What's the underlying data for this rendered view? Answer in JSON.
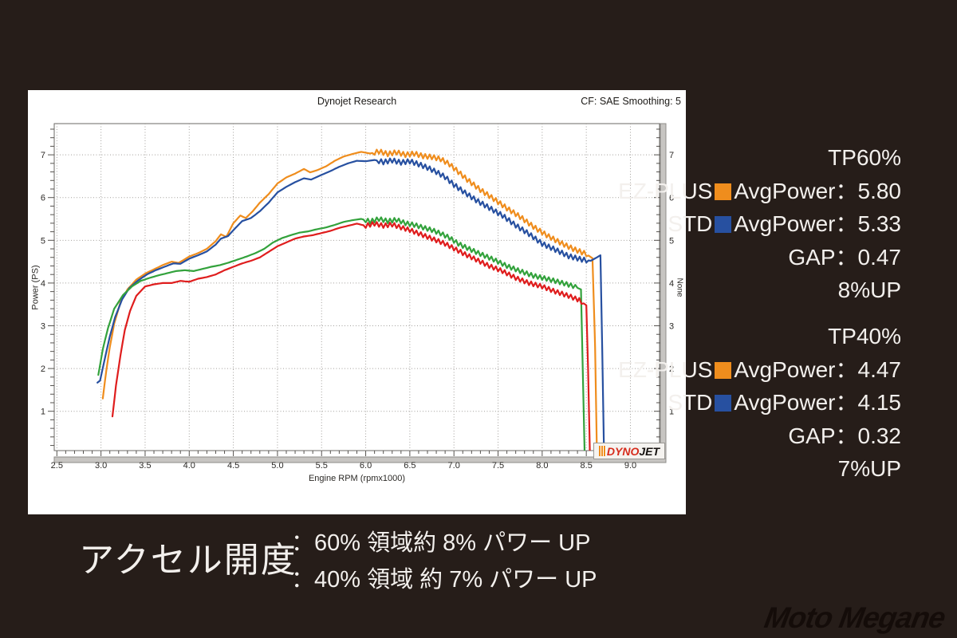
{
  "colors": {
    "background": "#261d19",
    "panel": "#ffffff",
    "text_light": "#f3f0ed",
    "orange": "#ef8d1d",
    "blue": "#2750a0",
    "green": "#33a23c",
    "red": "#df1d1d",
    "grid": "#a29f9b",
    "band": "#c7c5c2",
    "band_edge": "#8f8d8a",
    "border": "#6b6966"
  },
  "chart": {
    "title": "Dynojet Research",
    "cf_note": "CF: SAE Smoothing: 5",
    "x_axis_label": "Engine RPM (rpmx1000)",
    "y_axis_label": "Power (PS)",
    "right_axis_label": "None"
  },
  "chart_data": {
    "type": "line",
    "xlabel": "Engine RPM (rpmx1000)",
    "ylabel": "Power (PS)",
    "xlim": [
      2.47,
      9.33
    ],
    "ylim": [
      0.08,
      7.73
    ],
    "x_ticks": [
      2.5,
      3.0,
      3.5,
      4.0,
      4.5,
      5.0,
      5.5,
      6.0,
      6.5,
      7.0,
      7.5,
      8.0,
      8.5,
      9.0
    ],
    "x_tick_labels": [
      "2.5",
      "3.0",
      "3.5",
      "4.0",
      "4.5",
      "5.0",
      "5.5",
      "6.0",
      "6.5",
      "7.0",
      "7.5",
      "8.0",
      "8.5",
      "9.0"
    ],
    "y_ticks": [
      1,
      2,
      3,
      4,
      5,
      6,
      7
    ],
    "x_minor_step": 0.1,
    "y_minor_step": 0.2,
    "grid": "dotted",
    "series": [
      {
        "name": "TP60% EZ-PLUS",
        "color": "#ef8d1d",
        "wiggle": {
          "from": 6.1,
          "to": 8.5,
          "amp": 0.055
        },
        "points": [
          [
            3.02,
            1.3
          ],
          [
            3.06,
            1.95
          ],
          [
            3.1,
            2.5
          ],
          [
            3.15,
            3.05
          ],
          [
            3.22,
            3.55
          ],
          [
            3.3,
            3.85
          ],
          [
            3.4,
            4.08
          ],
          [
            3.5,
            4.22
          ],
          [
            3.6,
            4.32
          ],
          [
            3.7,
            4.42
          ],
          [
            3.8,
            4.5
          ],
          [
            3.88,
            4.47
          ],
          [
            4.0,
            4.62
          ],
          [
            4.1,
            4.7
          ],
          [
            4.2,
            4.8
          ],
          [
            4.3,
            4.98
          ],
          [
            4.36,
            5.14
          ],
          [
            4.42,
            5.08
          ],
          [
            4.5,
            5.4
          ],
          [
            4.58,
            5.58
          ],
          [
            4.64,
            5.52
          ],
          [
            4.72,
            5.68
          ],
          [
            4.8,
            5.88
          ],
          [
            4.9,
            6.08
          ],
          [
            5.0,
            6.33
          ],
          [
            5.1,
            6.47
          ],
          [
            5.2,
            6.56
          ],
          [
            5.3,
            6.67
          ],
          [
            5.37,
            6.59
          ],
          [
            5.45,
            6.64
          ],
          [
            5.55,
            6.73
          ],
          [
            5.65,
            6.86
          ],
          [
            5.75,
            6.96
          ],
          [
            5.85,
            7.02
          ],
          [
            5.95,
            7.07
          ],
          [
            6.05,
            7.03
          ],
          [
            6.15,
            7.08
          ],
          [
            6.25,
            7.02
          ],
          [
            6.35,
            7.06
          ],
          [
            6.45,
            7.0
          ],
          [
            6.55,
            7.03
          ],
          [
            6.65,
            6.97
          ],
          [
            6.75,
            6.95
          ],
          [
            6.85,
            6.9
          ],
          [
            6.95,
            6.78
          ],
          [
            7.05,
            6.6
          ],
          [
            7.15,
            6.42
          ],
          [
            7.3,
            6.18
          ],
          [
            7.45,
            5.97
          ],
          [
            7.6,
            5.75
          ],
          [
            7.75,
            5.55
          ],
          [
            7.9,
            5.32
          ],
          [
            8.05,
            5.12
          ],
          [
            8.2,
            4.95
          ],
          [
            8.35,
            4.8
          ],
          [
            8.5,
            4.68
          ],
          [
            8.57,
            4.58
          ],
          [
            8.6,
            2.5
          ],
          [
            8.62,
            0.1
          ]
        ]
      },
      {
        "name": "TP60% STD",
        "color": "#2750a0",
        "wiggle": {
          "from": 6.15,
          "to": 8.5,
          "amp": 0.055
        },
        "points": [
          [
            2.96,
            1.67
          ],
          [
            2.99,
            1.72
          ],
          [
            3.04,
            2.2
          ],
          [
            3.1,
            2.75
          ],
          [
            3.16,
            3.2
          ],
          [
            3.24,
            3.62
          ],
          [
            3.32,
            3.88
          ],
          [
            3.42,
            4.06
          ],
          [
            3.52,
            4.2
          ],
          [
            3.62,
            4.3
          ],
          [
            3.72,
            4.38
          ],
          [
            3.82,
            4.46
          ],
          [
            3.9,
            4.45
          ],
          [
            4.0,
            4.57
          ],
          [
            4.1,
            4.65
          ],
          [
            4.2,
            4.74
          ],
          [
            4.3,
            4.9
          ],
          [
            4.36,
            5.04
          ],
          [
            4.44,
            5.1
          ],
          [
            4.52,
            5.28
          ],
          [
            4.6,
            5.45
          ],
          [
            4.7,
            5.52
          ],
          [
            4.8,
            5.68
          ],
          [
            4.9,
            5.88
          ],
          [
            5.0,
            6.12
          ],
          [
            5.1,
            6.25
          ],
          [
            5.2,
            6.36
          ],
          [
            5.3,
            6.45
          ],
          [
            5.38,
            6.42
          ],
          [
            5.5,
            6.53
          ],
          [
            5.6,
            6.62
          ],
          [
            5.7,
            6.72
          ],
          [
            5.8,
            6.8
          ],
          [
            5.9,
            6.86
          ],
          [
            6.0,
            6.85
          ],
          [
            6.1,
            6.88
          ],
          [
            6.2,
            6.83
          ],
          [
            6.3,
            6.87
          ],
          [
            6.4,
            6.82
          ],
          [
            6.5,
            6.85
          ],
          [
            6.6,
            6.78
          ],
          [
            6.7,
            6.7
          ],
          [
            6.8,
            6.6
          ],
          [
            6.9,
            6.48
          ],
          [
            7.0,
            6.3
          ],
          [
            7.1,
            6.15
          ],
          [
            7.25,
            5.94
          ],
          [
            7.4,
            5.76
          ],
          [
            7.55,
            5.58
          ],
          [
            7.7,
            5.35
          ],
          [
            7.85,
            5.15
          ],
          [
            8.0,
            4.92
          ],
          [
            8.15,
            4.78
          ],
          [
            8.3,
            4.63
          ],
          [
            8.45,
            4.55
          ],
          [
            8.55,
            4.52
          ],
          [
            8.62,
            4.6
          ],
          [
            8.66,
            4.65
          ],
          [
            8.68,
            2.5
          ],
          [
            8.7,
            0.1
          ]
        ]
      },
      {
        "name": "TP40% EZ-PLUS",
        "color": "#33a23c",
        "wiggle": {
          "from": 6.0,
          "to": 8.38,
          "amp": 0.05
        },
        "points": [
          [
            2.97,
            1.85
          ],
          [
            3.02,
            2.45
          ],
          [
            3.08,
            2.95
          ],
          [
            3.15,
            3.4
          ],
          [
            3.25,
            3.72
          ],
          [
            3.35,
            3.92
          ],
          [
            3.45,
            4.05
          ],
          [
            3.55,
            4.12
          ],
          [
            3.65,
            4.18
          ],
          [
            3.75,
            4.23
          ],
          [
            3.85,
            4.28
          ],
          [
            3.95,
            4.3
          ],
          [
            4.05,
            4.28
          ],
          [
            4.15,
            4.33
          ],
          [
            4.25,
            4.38
          ],
          [
            4.35,
            4.42
          ],
          [
            4.45,
            4.48
          ],
          [
            4.55,
            4.55
          ],
          [
            4.65,
            4.62
          ],
          [
            4.75,
            4.7
          ],
          [
            4.85,
            4.8
          ],
          [
            4.95,
            4.95
          ],
          [
            5.05,
            5.05
          ],
          [
            5.15,
            5.12
          ],
          [
            5.25,
            5.18
          ],
          [
            5.35,
            5.21
          ],
          [
            5.45,
            5.26
          ],
          [
            5.55,
            5.3
          ],
          [
            5.65,
            5.36
          ],
          [
            5.75,
            5.43
          ],
          [
            5.85,
            5.47
          ],
          [
            5.95,
            5.5
          ],
          [
            6.05,
            5.44
          ],
          [
            6.15,
            5.5
          ],
          [
            6.25,
            5.45
          ],
          [
            6.35,
            5.48
          ],
          [
            6.45,
            5.4
          ],
          [
            6.55,
            5.36
          ],
          [
            6.65,
            5.3
          ],
          [
            6.75,
            5.24
          ],
          [
            6.85,
            5.16
          ],
          [
            6.95,
            5.06
          ],
          [
            7.05,
            4.92
          ],
          [
            7.15,
            4.82
          ],
          [
            7.3,
            4.68
          ],
          [
            7.45,
            4.55
          ],
          [
            7.6,
            4.4
          ],
          [
            7.75,
            4.28
          ],
          [
            7.9,
            4.17
          ],
          [
            8.05,
            4.1
          ],
          [
            8.2,
            4.02
          ],
          [
            8.35,
            3.93
          ],
          [
            8.44,
            3.85
          ],
          [
            8.46,
            2.0
          ],
          [
            8.48,
            0.08
          ]
        ]
      },
      {
        "name": "TP40% STD",
        "color": "#df1d1d",
        "wiggle": {
          "from": 6.0,
          "to": 8.45,
          "amp": 0.05
        },
        "points": [
          [
            3.13,
            0.88
          ],
          [
            3.17,
            1.6
          ],
          [
            3.22,
            2.3
          ],
          [
            3.27,
            2.9
          ],
          [
            3.33,
            3.35
          ],
          [
            3.4,
            3.7
          ],
          [
            3.5,
            3.92
          ],
          [
            3.6,
            3.97
          ],
          [
            3.7,
            4.0
          ],
          [
            3.8,
            4.0
          ],
          [
            3.9,
            4.05
          ],
          [
            4.0,
            4.03
          ],
          [
            4.1,
            4.1
          ],
          [
            4.2,
            4.14
          ],
          [
            4.3,
            4.2
          ],
          [
            4.4,
            4.3
          ],
          [
            4.5,
            4.38
          ],
          [
            4.6,
            4.46
          ],
          [
            4.7,
            4.52
          ],
          [
            4.8,
            4.6
          ],
          [
            4.9,
            4.73
          ],
          [
            5.0,
            4.86
          ],
          [
            5.1,
            4.95
          ],
          [
            5.2,
            5.04
          ],
          [
            5.3,
            5.09
          ],
          [
            5.4,
            5.12
          ],
          [
            5.5,
            5.17
          ],
          [
            5.6,
            5.22
          ],
          [
            5.7,
            5.29
          ],
          [
            5.8,
            5.34
          ],
          [
            5.9,
            5.39
          ],
          [
            6.0,
            5.34
          ],
          [
            6.1,
            5.39
          ],
          [
            6.2,
            5.34
          ],
          [
            6.3,
            5.37
          ],
          [
            6.4,
            5.3
          ],
          [
            6.5,
            5.24
          ],
          [
            6.6,
            5.16
          ],
          [
            6.7,
            5.08
          ],
          [
            6.8,
            5.0
          ],
          [
            6.9,
            4.92
          ],
          [
            7.0,
            4.81
          ],
          [
            7.1,
            4.7
          ],
          [
            7.25,
            4.55
          ],
          [
            7.4,
            4.4
          ],
          [
            7.55,
            4.28
          ],
          [
            7.7,
            4.12
          ],
          [
            7.85,
            4.0
          ],
          [
            8.0,
            3.92
          ],
          [
            8.15,
            3.8
          ],
          [
            8.3,
            3.7
          ],
          [
            8.42,
            3.6
          ],
          [
            8.5,
            3.48
          ],
          [
            8.52,
            2.0
          ],
          [
            8.54,
            0.08
          ]
        ]
      }
    ]
  },
  "dynojet_logo": {
    "dyno": "DYNO",
    "jet": "JET"
  },
  "stats": {
    "tp60": {
      "title": "TP60%",
      "ez_label": "EZ-PLUS",
      "ez_value": "AvgPower：5.80",
      "std_label": "STD",
      "std_value": "AvgPower：5.33",
      "gap": "GAP：0.47",
      "up": "8%UP"
    },
    "tp40": {
      "title": "TP40%",
      "ez_label": "EZ-PLUS",
      "ez_value": "AvgPower：4.47",
      "std_label": "STD",
      "std_value": "AvgPower：4.15",
      "gap": "GAP：0.32",
      "up": "7%UP"
    }
  },
  "caption": {
    "heading": "アクセル開度",
    "line1": "：60% 領域約 8% パワー UP",
    "line2": "：40% 領域 約 7% パワー UP"
  },
  "footer": {
    "logo_text": "Moto Megane"
  }
}
